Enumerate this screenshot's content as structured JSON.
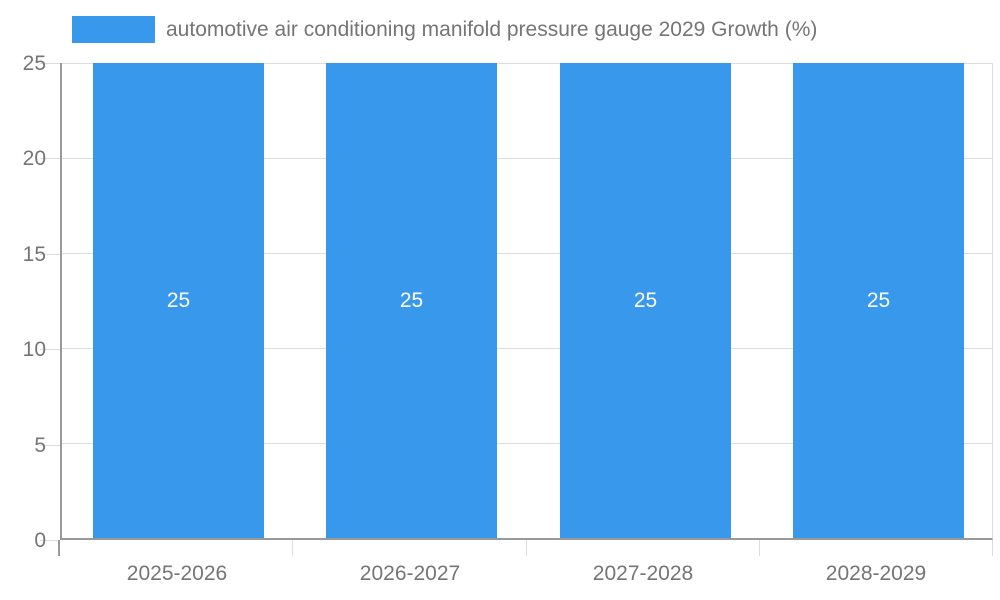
{
  "chart_data": {
    "type": "bar",
    "title": "",
    "categories": [
      "2025-2026",
      "2026-2027",
      "2027-2028",
      "2028-2029"
    ],
    "series": [
      {
        "name": "automotive air conditioning manifold pressure gauge 2029 Growth (%)",
        "values": [
          25,
          25,
          25,
          25
        ]
      }
    ],
    "value_labels": [
      "25",
      "25",
      "25",
      "25"
    ],
    "xlabel": "",
    "ylabel": "",
    "ylim": [
      0,
      25
    ],
    "yticks": [
      0,
      5,
      10,
      15,
      20,
      25
    ],
    "grid": true,
    "legend_position": "top-left",
    "colors": {
      "bar": "#3898EC",
      "text": "#757575",
      "grid": "#DDDDDD",
      "axis": "#999999",
      "tick": "#DDDDDD",
      "value_label": "#FFFFFF",
      "background": "#FFFFFF"
    }
  }
}
